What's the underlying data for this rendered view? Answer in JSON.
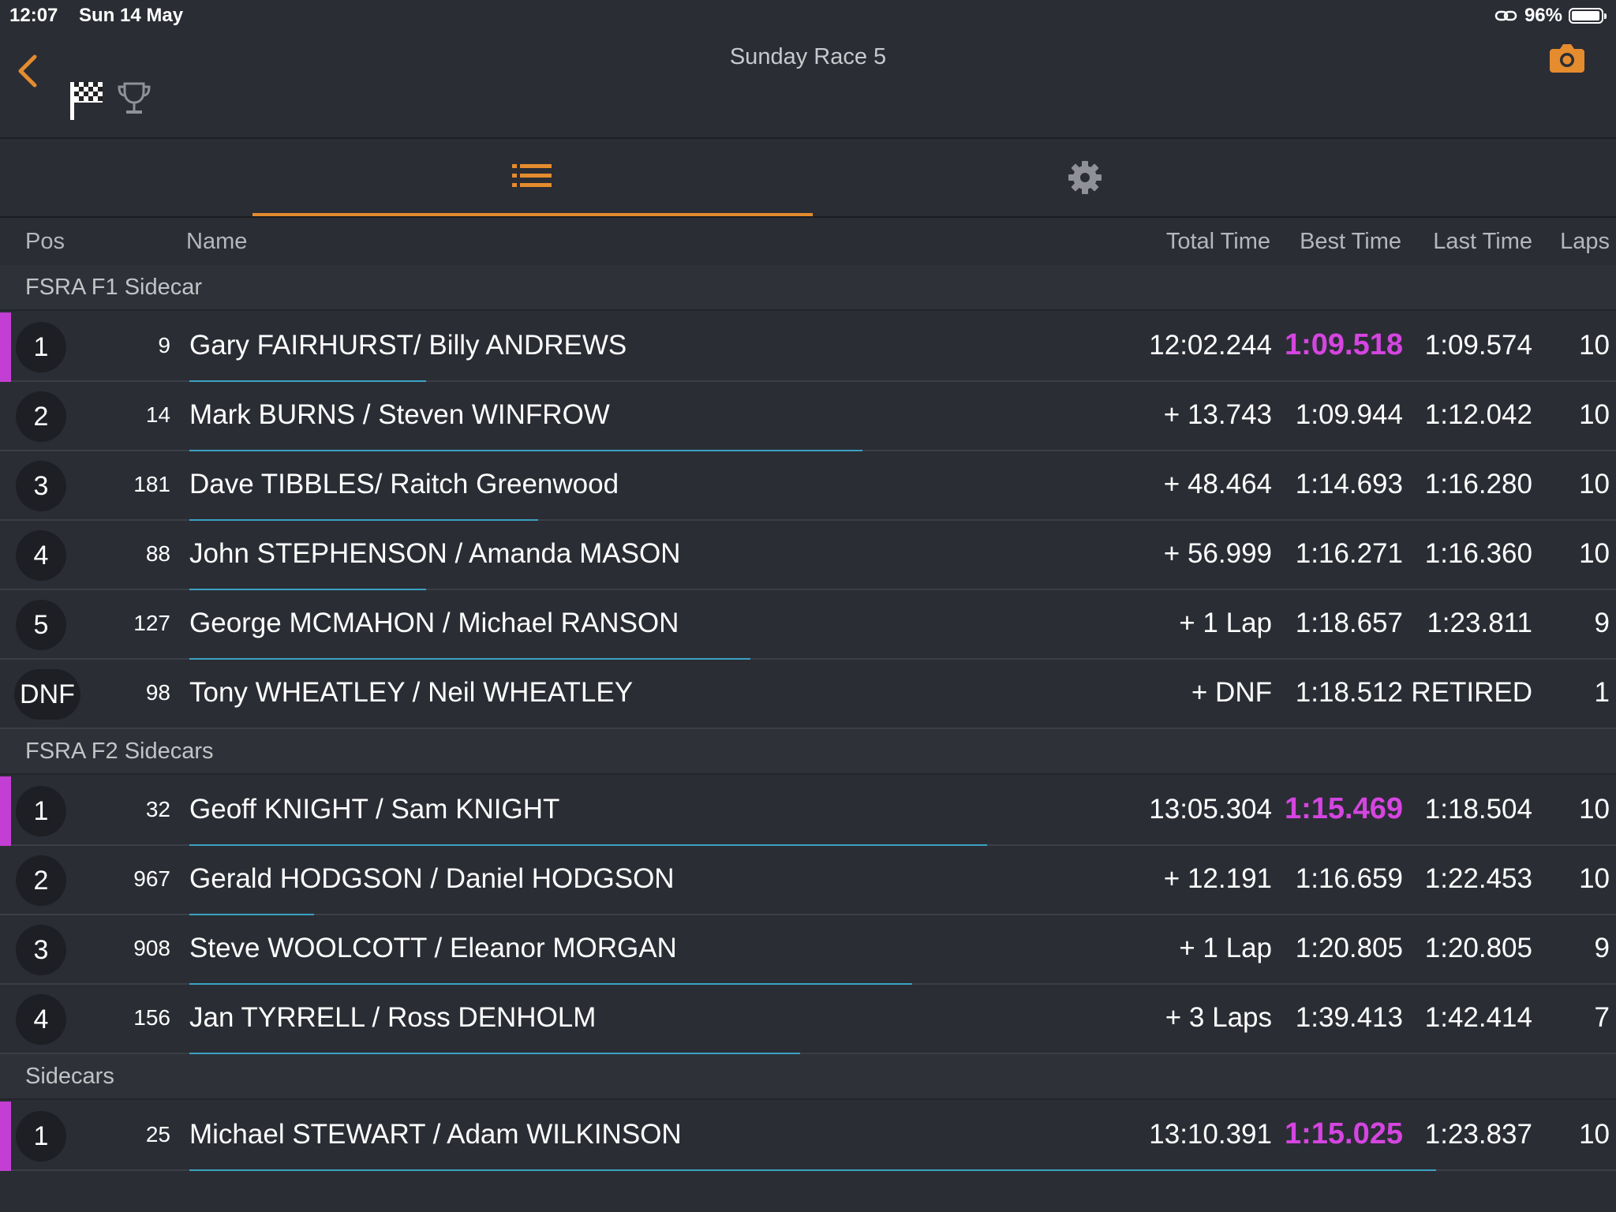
{
  "status_bar": {
    "time": "12:07",
    "date": "Sun 14 May",
    "battery": "96%",
    "battery_level": 0.96
  },
  "header": {
    "title": "Sunday Race 5"
  },
  "icons": {
    "back": "chevron-left-icon",
    "flag": "checkered-flag-icon",
    "trophy": "trophy-icon",
    "camera": "camera-icon",
    "list": "list-icon",
    "settings": "gear-icon"
  },
  "colors": {
    "accent": "#e48c2e",
    "fastest_lap": "#d545e0",
    "progress": "#3aa3c2",
    "background": "#2b2d35"
  },
  "columns": {
    "pos": "Pos",
    "name": "Name",
    "total": "Total Time",
    "best": "Best Time",
    "last": "Last Time",
    "laps": "Laps"
  },
  "groups": [
    {
      "title": "FSRA F1 Sidecar",
      "rows": [
        {
          "pos": "1",
          "num": "9",
          "name": "Gary FAIRHURST/ Billy ANDREWS",
          "total": "12:02.244",
          "best": "1:09.518",
          "last": "1:09.574",
          "laps": "10",
          "leader": true,
          "fastest": true,
          "progress": 0.19
        },
        {
          "pos": "2",
          "num": "14",
          "name": "Mark BURNS / Steven WINFROW",
          "total": "+ 13.743",
          "best": "1:09.944",
          "last": "1:12.042",
          "laps": "10",
          "leader": false,
          "fastest": false,
          "progress": 0.54
        },
        {
          "pos": "3",
          "num": "181",
          "name": "Dave TIBBLES/ Raitch Greenwood",
          "total": "+ 48.464",
          "best": "1:14.693",
          "last": "1:16.280",
          "laps": "10",
          "leader": false,
          "fastest": false,
          "progress": 0.28
        },
        {
          "pos": "4",
          "num": "88",
          "name": "John STEPHENSON / Amanda MASON",
          "total": "+ 56.999",
          "best": "1:16.271",
          "last": "1:16.360",
          "laps": "10",
          "leader": false,
          "fastest": false,
          "progress": 0.19
        },
        {
          "pos": "5",
          "num": "127",
          "name": "George MCMAHON / Michael RANSON",
          "total": "+ 1 Lap",
          "best": "1:18.657",
          "last": "1:23.811",
          "laps": "9",
          "leader": false,
          "fastest": false,
          "progress": 0.45
        },
        {
          "pos": "DNF",
          "num": "98",
          "name": "Tony WHEATLEY / Neil WHEATLEY",
          "total": "+ DNF",
          "best": "1:18.512",
          "last": "RETIRED",
          "laps": "1",
          "leader": false,
          "fastest": false,
          "progress": 0
        }
      ]
    },
    {
      "title": "FSRA F2 Sidecars",
      "rows": [
        {
          "pos": "1",
          "num": "32",
          "name": "Geoff KNIGHT / Sam KNIGHT",
          "total": "13:05.304",
          "best": "1:15.469",
          "last": "1:18.504",
          "laps": "10",
          "leader": true,
          "fastest": true,
          "progress": 0.64
        },
        {
          "pos": "2",
          "num": "967",
          "name": "Gerald HODGSON / Daniel HODGSON",
          "total": "+ 12.191",
          "best": "1:16.659",
          "last": "1:22.453",
          "laps": "10",
          "leader": false,
          "fastest": false,
          "progress": 0.1
        },
        {
          "pos": "3",
          "num": "908",
          "name": "Steve WOOLCOTT /  Eleanor MORGAN",
          "total": "+ 1 Lap",
          "best": "1:20.805",
          "last": "1:20.805",
          "laps": "9",
          "leader": false,
          "fastest": false,
          "progress": 0.58
        },
        {
          "pos": "4",
          "num": "156",
          "name": "Jan TYRRELL / Ross DENHOLM",
          "total": "+ 3 Laps",
          "best": "1:39.413",
          "last": "1:42.414",
          "laps": "7",
          "leader": false,
          "fastest": false,
          "progress": 0.49
        }
      ]
    },
    {
      "title": "Sidecars",
      "rows": [
        {
          "pos": "1",
          "num": "25",
          "name": "Michael STEWART / Adam WILKINSON",
          "total": "13:10.391",
          "best": "1:15.025",
          "last": "1:23.837",
          "laps": "10",
          "leader": true,
          "fastest": true,
          "progress": 1.0
        }
      ]
    }
  ]
}
